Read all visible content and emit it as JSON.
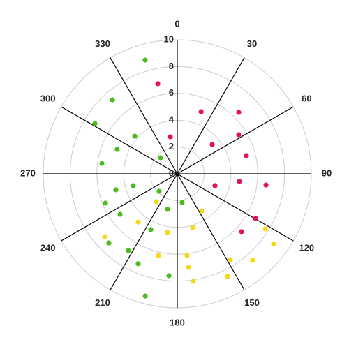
{
  "chart_data": {
    "type": "polar-scatter",
    "rlim": [
      0,
      10
    ],
    "rticks": [
      0,
      2,
      4,
      6,
      8,
      10
    ],
    "thetaticks": [
      0,
      30,
      60,
      90,
      120,
      150,
      180,
      210,
      240,
      270,
      300,
      330
    ],
    "grid": true,
    "series": [
      {
        "color": "#e3115f",
        "r": [
          4.96,
          6.48,
          5.43,
          3.4,
          5.33,
          6.67,
          4.67,
          2.95,
          6.72,
          6.45,
          6.88,
          2.81
        ],
        "theta": [
          21,
          45,
          57.5,
          50,
          75.3,
          97.2,
          97,
          107.5,
          119.7,
          132,
          347.8,
          349.3
        ]
      },
      {
        "color": "#f7d716",
        "r": [
          3.31,
          4.17,
          4.44,
          2.6,
          4.63,
          7.16,
          6.26,
          6.14,
          7.03,
          8.11,
          7.53,
          8.53,
          8.56,
          7.75,
          8.88
        ],
        "theta": [
          146.6,
          164,
          189.5,
          216.9,
          219,
          229,
          193,
          173.2,
          173.2,
          171.5,
          148.3,
          153.9,
          139,
          122,
          126
        ]
      },
      {
        "color": "#4dbb1b",
        "r": [
          8.82,
          7.34,
          7.2,
          4.24,
          4.84,
          1.73,
          5.68,
          3.4,
          4.74,
          5.79,
          1.88,
          5.23,
          2.17,
          2.75,
          4.61,
          7.26,
          6.79,
          7.32,
          7.63,
          9.43
        ],
        "theta": [
          344.2,
          318.7,
          301.4,
          311.5,
          292.1,
          313.8,
          277.9,
          254.9,
          255.4,
          247.8,
          226,
          234.7,
          170.3,
          195.4,
          205.4,
          224.7,
          212.5,
          203.5,
          184.7,
          194.7
        ]
      }
    ]
  }
}
